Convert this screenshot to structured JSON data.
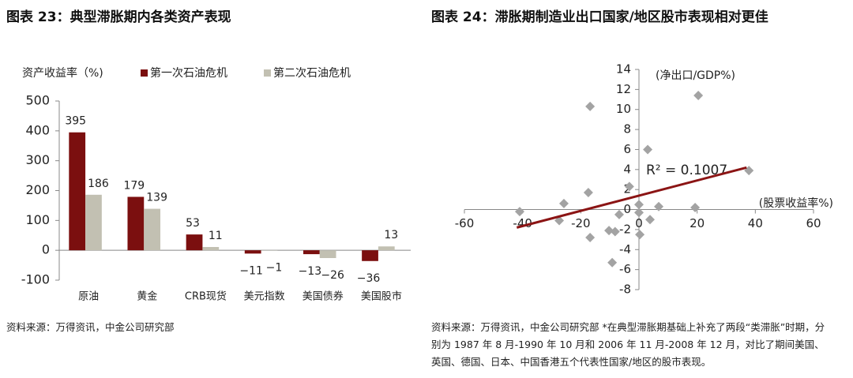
{
  "chart_data": [
    {
      "type": "bar",
      "title": "图表 23：典型滞胀期内各类资产表现",
      "y_label": "资产收益率（%)",
      "categories": [
        "原油",
        "黄金",
        "CRB现货",
        "美元指数",
        "美国债券",
        "美国股市"
      ],
      "series": [
        {
          "name": "第一次石油危机",
          "color": "#7b0f0f",
          "values": [
            395,
            179,
            53,
            -11,
            -13,
            -36
          ],
          "value_labels": [
            "395",
            "179",
            "53",
            "−11",
            "−13",
            "−36"
          ]
        },
        {
          "name": "第二次石油危机",
          "color": "#c2c0b2",
          "values": [
            186,
            139,
            11,
            -1,
            -26,
            13
          ],
          "value_labels": [
            "186",
            "139",
            "11",
            "−1",
            "−26",
            "13"
          ]
        }
      ],
      "ylim": [
        -100,
        500
      ],
      "yticks": [
        -100,
        0,
        100,
        200,
        300,
        400,
        500
      ],
      "note": "资料来源：万得资讯，中金公司研究部"
    },
    {
      "type": "scatter",
      "title": "图表 24：滞胀期制造业出口国家/地区股市表现相对更佳",
      "y_label": "(净出口/GDP%)",
      "x_label": "(股票收益率%)",
      "annotation": "R² = 0.1007",
      "x": [
        -16.8,
        20.4,
        3,
        -3.3,
        -17.4,
        -25.8,
        -41,
        0,
        6.8,
        19.3,
        37.8,
        -27.4,
        3.8,
        -6.8,
        -10.3,
        -8.2,
        -16.8,
        0.3,
        -9.2,
        0
      ],
      "values": [
        10.3,
        11.4,
        6,
        2.3,
        1.7,
        0.6,
        -0.2,
        0.5,
        0.3,
        0.2,
        3.9,
        -1.1,
        -1,
        -0.5,
        -2.1,
        -2.2,
        -2.8,
        -2.5,
        -5.3,
        -0.3
      ],
      "color": "#a3a3a3",
      "trendline": {
        "x": [
          -42,
          37
        ],
        "y": [
          -1.8,
          4.2
        ],
        "color": "#8b1414"
      },
      "xlim": [
        -60,
        60
      ],
      "xticks": [
        -60,
        -40,
        -20,
        0,
        20,
        40,
        60
      ],
      "ylim": [
        -8,
        14
      ],
      "yticks": [
        -8,
        -6,
        -4,
        -2,
        0,
        2,
        4,
        6,
        8,
        10,
        12,
        14
      ],
      "note": "资料来源：万得资讯，中金公司研究部 *在典型滞胀期基础上补充了两段“类滞胀”时期，分别为 1987 年 8 月-1990 年 10 月和 2006 年 11 月-2008 年 12 月，对比了期间美国、英国、德国、日本、中国香港五个代表性国家/地区的股市表现。"
    }
  ]
}
